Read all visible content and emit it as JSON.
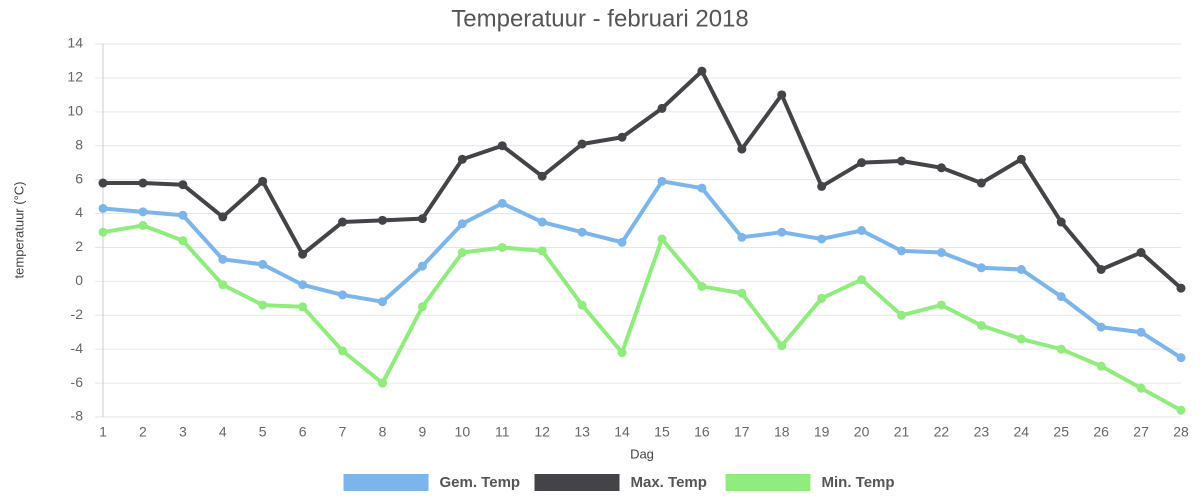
{
  "chart_data": {
    "type": "line",
    "title": "Temperatuur - februari 2018",
    "x_label": "Dag",
    "y_label": "temperatuur (°C)",
    "categories": [
      "1",
      "2",
      "3",
      "4",
      "5",
      "6",
      "7",
      "8",
      "9",
      "10",
      "11",
      "12",
      "13",
      "14",
      "15",
      "16",
      "17",
      "18",
      "19",
      "20",
      "21",
      "22",
      "23",
      "24",
      "25",
      "26",
      "27",
      "28"
    ],
    "ylim": [
      -8,
      14
    ],
    "yticks": [
      -8,
      -6,
      -4,
      -2,
      0,
      2,
      4,
      6,
      8,
      10,
      12,
      14
    ],
    "grid": true,
    "legend": "bottom",
    "series": [
      {
        "name": "Gem. Temp",
        "color": "#7cb5ec",
        "values": [
          4.3,
          4.1,
          3.9,
          1.3,
          1.0,
          -0.2,
          -0.8,
          -1.2,
          0.9,
          3.4,
          4.6,
          3.5,
          2.9,
          2.3,
          5.9,
          5.5,
          2.6,
          2.9,
          2.5,
          3.0,
          1.8,
          1.7,
          0.8,
          0.7,
          -0.9,
          -2.7,
          -3.0,
          -4.5
        ]
      },
      {
        "name": "Max. Temp",
        "color": "#434348",
        "values": [
          5.8,
          5.8,
          5.7,
          3.8,
          5.9,
          1.6,
          3.5,
          3.6,
          3.7,
          7.2,
          8.0,
          6.2,
          8.1,
          8.5,
          10.2,
          12.4,
          7.8,
          11.0,
          5.6,
          7.0,
          7.1,
          6.7,
          5.8,
          7.2,
          3.5,
          0.7,
          1.7,
          -0.4
        ]
      },
      {
        "name": "Min. Temp",
        "color": "#90ed7d",
        "values": [
          2.9,
          3.3,
          2.4,
          -0.2,
          -1.4,
          -1.5,
          -4.1,
          -6.0,
          -1.5,
          1.7,
          2.0,
          1.8,
          -1.4,
          -4.2,
          2.5,
          -0.3,
          -0.7,
          -3.8,
          -1.0,
          0.1,
          -2.0,
          -1.4,
          -2.6,
          -3.4,
          -4.0,
          -5.0,
          -6.3,
          -7.6
        ]
      }
    ]
  }
}
